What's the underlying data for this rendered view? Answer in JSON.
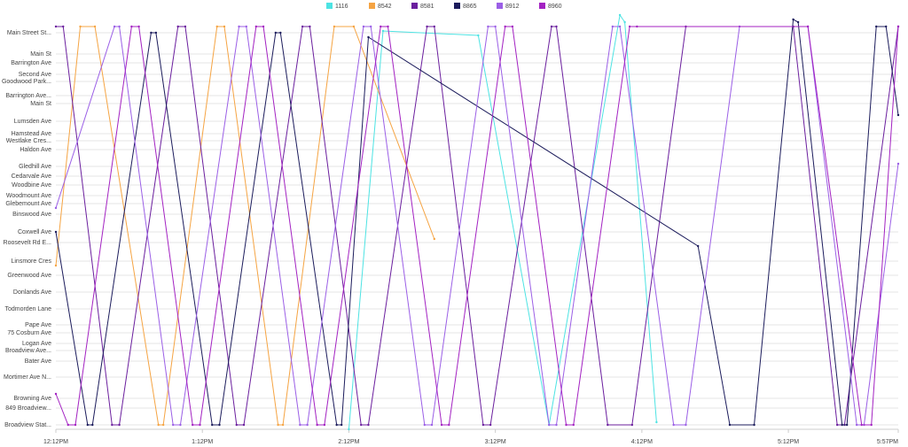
{
  "chart_data": {
    "type": "line",
    "xlim": [
      732,
      1077
    ],
    "xticks": [
      {
        "value": 732,
        "label": "12:12PM"
      },
      {
        "value": 792,
        "label": "1:12PM"
      },
      {
        "value": 852,
        "label": "2:12PM"
      },
      {
        "value": 912,
        "label": "3:12PM"
      },
      {
        "value": 972,
        "label": "4:12PM"
      },
      {
        "value": 1032,
        "label": "5:12PM"
      },
      {
        "value": 1077,
        "label": "5:57PM"
      }
    ],
    "ylim": [
      0,
      473
    ],
    "yticks": [
      {
        "value": 448,
        "label": "Main Street St..."
      },
      {
        "value": 424,
        "label": "Main St"
      },
      {
        "value": 414,
        "label": "Barrington Ave"
      },
      {
        "value": 401,
        "label": "Second Ave"
      },
      {
        "value": 393,
        "label": "Goodwood Park..."
      },
      {
        "value": 377,
        "label": "Barrington Ave..."
      },
      {
        "value": 368,
        "label": "Main St"
      },
      {
        "value": 348,
        "label": "Lumsden Ave"
      },
      {
        "value": 334,
        "label": "Hamstead Ave"
      },
      {
        "value": 326,
        "label": "Westlake Cres..."
      },
      {
        "value": 316,
        "label": "Haldon Ave"
      },
      {
        "value": 297,
        "label": "Gledhill Ave"
      },
      {
        "value": 286,
        "label": "Cedarvale Ave"
      },
      {
        "value": 276,
        "label": "Woodbine Ave"
      },
      {
        "value": 264,
        "label": "Woodmount Ave"
      },
      {
        "value": 255,
        "label": "Glebemount Ave"
      },
      {
        "value": 243,
        "label": "Binswood Ave"
      },
      {
        "value": 223,
        "label": "Coxwell Ave"
      },
      {
        "value": 211,
        "label": "Roosevelt Rd E..."
      },
      {
        "value": 190,
        "label": "Linsmore Cres"
      },
      {
        "value": 174,
        "label": "Greenwood Ave"
      },
      {
        "value": 155,
        "label": "Donlands Ave"
      },
      {
        "value": 136,
        "label": "Todmorden Lane"
      },
      {
        "value": 118,
        "label": "Pape Ave"
      },
      {
        "value": 109,
        "label": "75 Cosburn Ave"
      },
      {
        "value": 97,
        "label": "Logan Ave"
      },
      {
        "value": 89,
        "label": "Broadview Ave..."
      },
      {
        "value": 77,
        "label": "Bater Ave"
      },
      {
        "value": 59,
        "label": "Mortimer Ave N..."
      },
      {
        "value": 35,
        "label": "Browning Ave"
      },
      {
        "value": 24,
        "label": "849 Broadview..."
      },
      {
        "value": 5,
        "label": "Broadview Stat..."
      }
    ],
    "grid": true,
    "legend": "top",
    "series": [
      {
        "name": "1116",
        "color": "#4de3e3",
        "x": [
          852,
          866,
          905,
          934,
          963,
          965,
          978
        ],
        "values": [
          0,
          450,
          445,
          5,
          468,
          460,
          8
        ]
      },
      {
        "name": "8542",
        "color": "#f5a443",
        "x": [
          732,
          742,
          748,
          774,
          776,
          798,
          801,
          823,
          825,
          846,
          854,
          887
        ],
        "values": [
          185,
          455,
          455,
          5,
          5,
          455,
          455,
          5,
          5,
          455,
          455,
          215
        ]
      },
      {
        "name": "8581",
        "color": "#6b1f9e",
        "x": [
          732,
          735,
          755,
          758,
          782,
          785,
          806,
          809,
          833,
          836,
          857,
          860,
          884,
          887,
          907,
          910,
          935,
          937,
          958,
          968,
          990,
          1034,
          1052,
          1055,
          1077
        ],
        "values": [
          455,
          455,
          5,
          5,
          455,
          455,
          5,
          5,
          455,
          455,
          5,
          5,
          455,
          455,
          5,
          5,
          455,
          455,
          5,
          5,
          455,
          455,
          5,
          5,
          455
        ]
      },
      {
        "name": "8865",
        "color": "#1c1c5c",
        "x": [
          732,
          745,
          747,
          771,
          773,
          796,
          799,
          822,
          824,
          847,
          849,
          860,
          995,
          1008,
          1018,
          1034,
          1036,
          1054,
          1056,
          1068,
          1072,
          1077
        ],
        "values": [
          223,
          5,
          5,
          448,
          448,
          5,
          5,
          448,
          448,
          5,
          5,
          443,
          207,
          5,
          5,
          463,
          460,
          5,
          5,
          455,
          455,
          355
        ]
      },
      {
        "name": "8912",
        "color": "#9b5fe6",
        "x": [
          732,
          756,
          758,
          780,
          783,
          807,
          810,
          832,
          835,
          858,
          861,
          883,
          886,
          909,
          912,
          934,
          937,
          960,
          963,
          985,
          990,
          1012,
          1040,
          1060,
          1063,
          1077
        ],
        "values": [
          250,
          455,
          455,
          5,
          5,
          455,
          455,
          5,
          5,
          455,
          455,
          5,
          5,
          455,
          455,
          5,
          5,
          455,
          455,
          5,
          5,
          455,
          455,
          5,
          5,
          300
        ]
      },
      {
        "name": "8960",
        "color": "#a322c2",
        "x": [
          732,
          737,
          740,
          763,
          766,
          788,
          791,
          814,
          817,
          839,
          842,
          865,
          868,
          890,
          893,
          916,
          919,
          941,
          944,
          967,
          970,
          1040,
          1062,
          1066,
          1077
        ],
        "values": [
          40,
          5,
          5,
          455,
          455,
          5,
          5,
          455,
          455,
          5,
          5,
          455,
          455,
          5,
          5,
          455,
          455,
          5,
          5,
          455,
          455,
          455,
          5,
          5,
          455
        ]
      }
    ]
  }
}
